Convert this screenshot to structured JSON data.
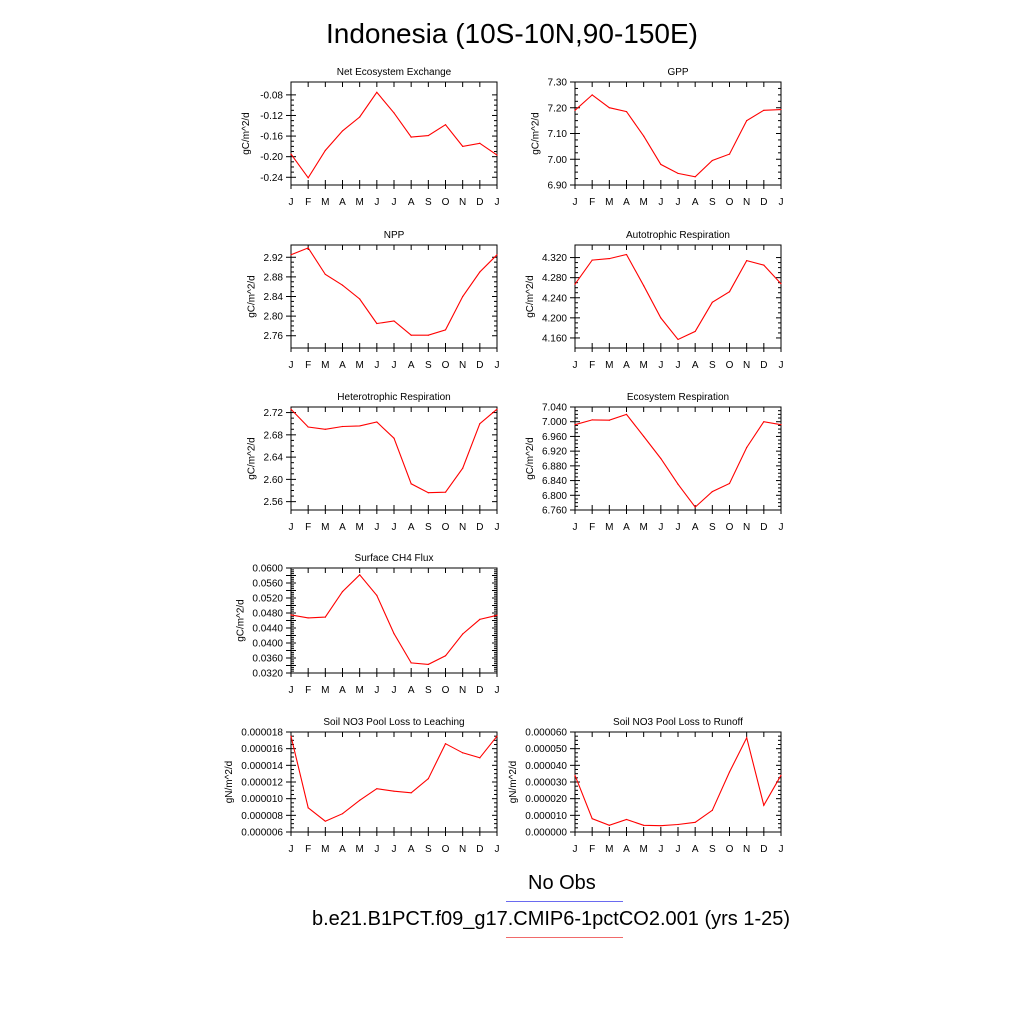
{
  "title": "Indonesia (10S-10N,90-150E)",
  "months": [
    "J",
    "F",
    "M",
    "A",
    "M",
    "J",
    "J",
    "A",
    "S",
    "O",
    "N",
    "D",
    "J"
  ],
  "colors": {
    "model": "#ff0000",
    "obs": "#0000ff"
  },
  "legend": {
    "obs_label": "No Obs",
    "model_label": "b.e21.B1PCT.f09_g17.CMIP6-1pctCO2.001 (yrs 1-25)"
  },
  "chart_data": [
    {
      "type": "line",
      "title": "Net Ecosystem Exchange",
      "ylabel": "gC/m^2/d",
      "ylim": [
        -0.255,
        -0.055
      ],
      "yticks": [
        -0.24,
        -0.2,
        -0.16,
        -0.12,
        -0.08
      ],
      "ytick_labels": [
        "-0.24",
        "-0.20",
        "-0.16",
        "-0.12",
        "-0.08"
      ],
      "values": [
        -0.195,
        -0.241,
        -0.188,
        -0.15,
        -0.123,
        -0.075,
        -0.115,
        -0.162,
        -0.159,
        -0.138,
        -0.18,
        -0.174,
        -0.197
      ]
    },
    {
      "type": "line",
      "title": "GPP",
      "ylabel": "gC/m^2/d",
      "ylim": [
        6.9,
        7.3
      ],
      "yticks": [
        6.9,
        7.0,
        7.1,
        7.2,
        7.3
      ],
      "ytick_labels": [
        "6.90",
        "7.00",
        "7.10",
        "7.20",
        "7.30"
      ],
      "values": [
        7.19,
        7.25,
        7.2,
        7.185,
        7.09,
        6.98,
        6.945,
        6.932,
        6.995,
        7.02,
        7.15,
        7.19,
        7.193
      ]
    },
    {
      "type": "line",
      "title": "NPP",
      "ylabel": "gC/m^2/d",
      "ylim": [
        2.735,
        2.945
      ],
      "yticks": [
        2.76,
        2.8,
        2.84,
        2.88,
        2.92
      ],
      "ytick_labels": [
        "2.76",
        "2.80",
        "2.84",
        "2.88",
        "2.92"
      ],
      "values": [
        2.925,
        2.939,
        2.885,
        2.863,
        2.835,
        2.785,
        2.79,
        2.761,
        2.761,
        2.772,
        2.84,
        2.89,
        2.925
      ]
    },
    {
      "type": "line",
      "title": "Autotrophic Respiration",
      "ylabel": "gC/m^2/d",
      "ylim": [
        4.14,
        4.345
      ],
      "yticks": [
        4.16,
        4.2,
        4.24,
        4.28,
        4.32
      ],
      "ytick_labels": [
        "4.160",
        "4.200",
        "4.240",
        "4.280",
        "4.320"
      ],
      "values": [
        4.267,
        4.315,
        4.318,
        4.326,
        4.264,
        4.2,
        4.157,
        4.173,
        4.231,
        4.252,
        4.314,
        4.305,
        4.268
      ]
    },
    {
      "type": "line",
      "title": "Heterotrophic Respiration",
      "ylabel": "gC/m^2/d",
      "ylim": [
        2.545,
        2.73
      ],
      "yticks": [
        2.56,
        2.6,
        2.64,
        2.68,
        2.72
      ],
      "ytick_labels": [
        "2.56",
        "2.60",
        "2.64",
        "2.68",
        "2.72"
      ],
      "values": [
        2.726,
        2.694,
        2.69,
        2.695,
        2.696,
        2.703,
        2.674,
        2.592,
        2.576,
        2.577,
        2.62,
        2.7,
        2.726
      ]
    },
    {
      "type": "line",
      "title": "Ecosystem Respiration",
      "ylabel": "gC/m^2/d",
      "ylim": [
        6.76,
        7.04
      ],
      "yticks": [
        6.76,
        6.8,
        6.84,
        6.88,
        6.92,
        6.96,
        7.0,
        7.04
      ],
      "ytick_labels": [
        "6.760",
        "6.800",
        "6.840",
        "6.880",
        "6.920",
        "6.960",
        "7.000",
        "7.040"
      ],
      "values": [
        6.992,
        7.005,
        7.004,
        7.02,
        6.96,
        6.9,
        6.83,
        6.768,
        6.81,
        6.832,
        6.93,
        7.0,
        6.992
      ]
    },
    {
      "type": "line",
      "title": "Surface CH4 Flux",
      "ylabel": "gC/m^2/d",
      "ylim": [
        0.032,
        0.06
      ],
      "yticks": [
        0.032,
        0.034,
        0.036,
        0.038,
        0.04,
        0.042,
        0.044,
        0.046,
        0.048,
        0.05,
        0.052,
        0.054,
        0.056,
        0.058,
        0.06
      ],
      "ytick_labels": [
        "0.0320",
        "",
        "0.0360",
        "",
        "0.0400",
        "",
        "0.0440",
        "",
        "0.0480",
        "",
        "0.0520",
        "",
        "0.0560",
        "",
        "0.0600"
      ],
      "values": [
        0.0475,
        0.0467,
        0.0469,
        0.0537,
        0.0582,
        0.0527,
        0.0425,
        0.0347,
        0.0343,
        0.0366,
        0.0424,
        0.0463,
        0.0474
      ]
    },
    {
      "type": "line",
      "title": "Soil NO3 Pool Loss to Leaching",
      "ylabel": "gN/m^2/d",
      "ylim": [
        6e-06,
        1.8e-05
      ],
      "yticks": [
        6e-06,
        8e-06,
        1e-05,
        1.2e-05,
        1.4e-05,
        1.6e-05,
        1.8e-05
      ],
      "ytick_labels": [
        "0.000006",
        "0.000008",
        "0.000010",
        "0.000012",
        "0.000014",
        "0.000016",
        "0.000018"
      ],
      "values": [
        1.75e-05,
        8.9e-06,
        7.3e-06,
        8.2e-06,
        9.8e-06,
        1.12e-05,
        1.09e-05,
        1.07e-05,
        1.24e-05,
        1.66e-05,
        1.55e-05,
        1.49e-05,
        1.75e-05
      ]
    },
    {
      "type": "line",
      "title": "Soil NO3 Pool Loss to Runoff",
      "ylabel": "gN/m^2/d",
      "ylim": [
        0.0,
        6e-05
      ],
      "yticks": [
        0.0,
        1e-05,
        2e-05,
        3e-05,
        4e-05,
        5e-05,
        6e-05
      ],
      "ytick_labels": [
        "0.000000",
        "0.000010",
        "0.000020",
        "0.000030",
        "0.000040",
        "0.000050",
        "0.000060"
      ],
      "values": [
        3.4e-05,
        8e-06,
        4e-06,
        7.5e-06,
        4e-06,
        3.8e-06,
        4.5e-06,
        5.8e-06,
        1.3e-05,
        3.6e-05,
        5.65e-05,
        1.6e-05,
        3.4e-05
      ]
    }
  ]
}
